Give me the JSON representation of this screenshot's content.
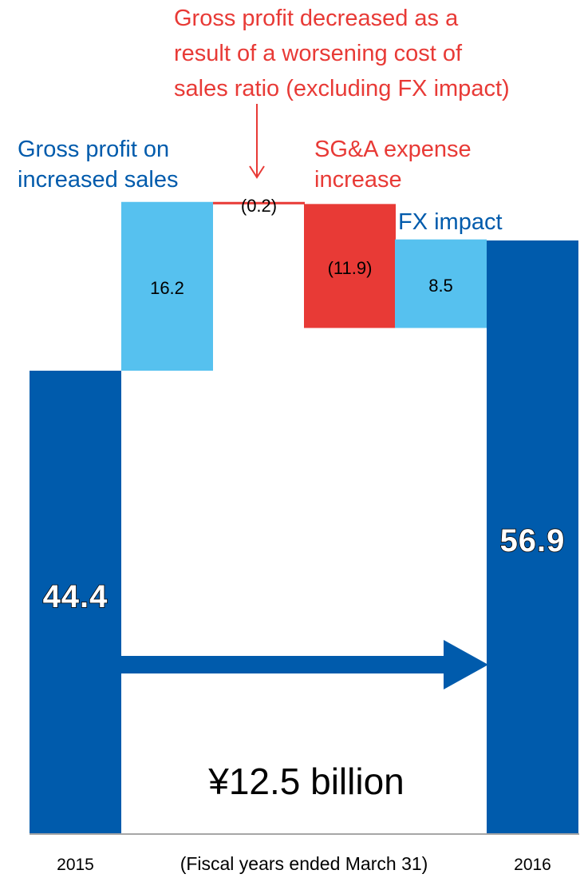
{
  "chart_data": {
    "type": "bar",
    "subtype": "waterfall",
    "categories": [
      "2015",
      "Gross profit on increased sales",
      "Gross profit decreased as a result of a worsening cost of sales ratio (excluding FX impact)",
      "SG&A expense increase",
      "FX impact",
      "2016"
    ],
    "steps": [
      {
        "kind": "total",
        "value": 44.4,
        "label": "44.4",
        "color": "#005BAC"
      },
      {
        "kind": "delta",
        "value": 16.2,
        "label": "16.2",
        "color": "#56C1EF"
      },
      {
        "kind": "delta",
        "value": -0.2,
        "label": "(0.2)",
        "color": "#E83A36"
      },
      {
        "kind": "delta",
        "value": -11.9,
        "label": "(11.9)",
        "color": "#E83A36"
      },
      {
        "kind": "delta",
        "value": 8.5,
        "label": "8.5",
        "color": "#56C1EF"
      },
      {
        "kind": "total",
        "value": 56.9,
        "label": "56.9",
        "color": "#005BAC"
      }
    ],
    "annotations": {
      "gross_profit_sales": "Gross profit on increased sales",
      "gross_profit_ratio": "Gross profit decreased as a result of a worsening cost of sales ratio (excluding FX impact)",
      "gross_profit_ratio_lines": [
        "Gross profit decreased as a",
        "result of a worsening cost of",
        "sales ratio (excluding FX impact)"
      ],
      "gross_profit_sales_lines": [
        "Gross profit on",
        "increased sales"
      ],
      "sga": "SG&A expense increase",
      "sga_lines": [
        "SG&A expense",
        "increase"
      ],
      "fx": "FX impact",
      "increase": "¥12.5 billion"
    },
    "x_labels": {
      "left": "2015",
      "right": "2016"
    },
    "footnote": "(Fiscal years ended March 31)",
    "ylim": [
      0,
      60
    ],
    "colors": {
      "total": "#005BAC",
      "increase": "#56C1EF",
      "decrease": "#E83A36",
      "annotation_blue": "#005BAC",
      "annotation_red": "#E83A36"
    }
  }
}
